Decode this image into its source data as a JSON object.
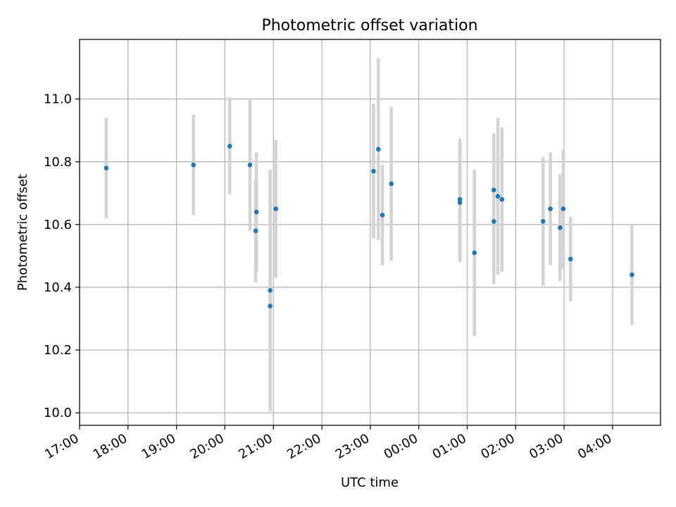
{
  "chart_data": {
    "type": "scatter",
    "title": "Photometric offset variation",
    "xlabel": "UTC time",
    "ylabel": "Photometric offset",
    "x_axis": "time",
    "x_start_label": "17:00",
    "x_end_label": "04:59",
    "xlim_hours": [
      0,
      11.99
    ],
    "ylim": [
      9.96,
      11.19
    ],
    "x_ticks": [
      "17:00",
      "18:00",
      "19:00",
      "20:00",
      "21:00",
      "22:00",
      "23:00",
      "00:00",
      "01:00",
      "02:00",
      "03:00",
      "04:00"
    ],
    "y_ticks": [
      "10.0",
      "10.2",
      "10.4",
      "10.6",
      "10.8",
      "11.0"
    ],
    "y_tick_values": [
      10.0,
      10.2,
      10.4,
      10.6,
      10.8,
      11.0
    ],
    "grid": true,
    "colors": {
      "point": "#1f77b4",
      "errorbar": "#d3d3d3",
      "grid": "#b0b0b0"
    },
    "points": [
      {
        "t": "17:33",
        "y": 10.78,
        "err": 0.16
      },
      {
        "t": "19:21",
        "y": 10.79,
        "err": 0.16
      },
      {
        "t": "20:06",
        "y": 10.85,
        "err": 0.155
      },
      {
        "t": "20:31",
        "y": 10.79,
        "err": 0.21
      },
      {
        "t": "20:38",
        "y": 10.58,
        "err": 0.165
      },
      {
        "t": "20:39",
        "y": 10.64,
        "err": 0.19
      },
      {
        "t": "20:56",
        "y": 10.39,
        "err": 0.385
      },
      {
        "t": "20:56",
        "y": 10.34,
        "err": 0.33
      },
      {
        "t": "21:03",
        "y": 10.65,
        "err": 0.22
      },
      {
        "t": "23:04",
        "y": 10.77,
        "err": 0.215
      },
      {
        "t": "23:10",
        "y": 10.84,
        "err": 0.29
      },
      {
        "t": "23:15",
        "y": 10.63,
        "err": 0.16
      },
      {
        "t": "23:26",
        "y": 10.73,
        "err": 0.245
      },
      {
        "t": "00:51",
        "y": 10.67,
        "err": 0.19
      },
      {
        "t": "00:51",
        "y": 10.68,
        "err": 0.195
      },
      {
        "t": "01:09",
        "y": 10.51,
        "err": 0.265
      },
      {
        "t": "01:33",
        "y": 10.71,
        "err": 0.18
      },
      {
        "t": "01:33",
        "y": 10.61,
        "err": 0.2
      },
      {
        "t": "01:38",
        "y": 10.69,
        "err": 0.25
      },
      {
        "t": "01:43",
        "y": 10.68,
        "err": 0.23
      },
      {
        "t": "02:34",
        "y": 10.61,
        "err": 0.205
      },
      {
        "t": "02:43",
        "y": 10.65,
        "err": 0.18
      },
      {
        "t": "02:55",
        "y": 10.59,
        "err": 0.17
      },
      {
        "t": "02:59",
        "y": 10.65,
        "err": 0.19
      },
      {
        "t": "03:08",
        "y": 10.49,
        "err": 0.135
      },
      {
        "t": "04:24",
        "y": 10.44,
        "err": 0.16
      }
    ]
  }
}
